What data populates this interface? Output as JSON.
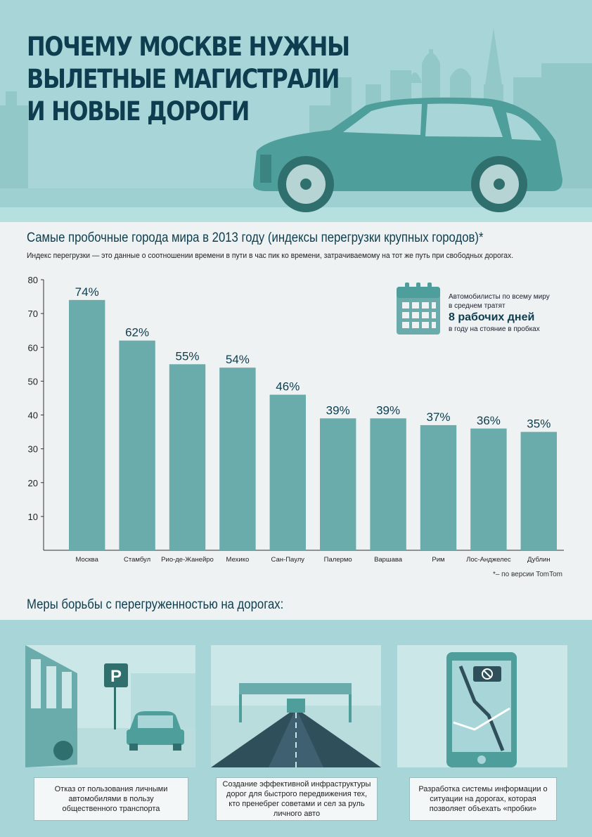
{
  "header": {
    "title_lines": [
      "ПОЧЕМУ МОСКВЕ НУЖНЫ",
      "ВЫЛЕТНЫЕ МАГИСТРАЛИ",
      "И НОВЫЕ ДОРОГИ"
    ]
  },
  "chart_section": {
    "title": "Самые пробочные города мира в 2013 году (индексы перегрузки крупных городов)*",
    "description": "Индекс перегрузки — это данные о соотношении времени в пути в час пик ко времени, затрачиваемому на тот же путь при свободных дорогах.",
    "source_note": "*– по версии TomTom"
  },
  "callout": {
    "line1": "Автомобилисты по всему миру",
    "line2": "в среднем тратят",
    "highlight": "8 рабочих дней",
    "line3": "в году на стояние в пробках",
    "icon": "calendar-icon"
  },
  "chart_data": {
    "type": "bar",
    "categories": [
      "Москва",
      "Стамбул",
      "Рио-де-Жанейро",
      "Мехико",
      "Сан-Паулу",
      "Палермо",
      "Варшава",
      "Рим",
      "Лос-Анджелес",
      "Дублин"
    ],
    "values": [
      74,
      62,
      55,
      54,
      46,
      39,
      39,
      37,
      36,
      35
    ],
    "value_labels": [
      "74%",
      "62%",
      "55%",
      "54%",
      "46%",
      "39%",
      "39%",
      "37%",
      "36%",
      "35%"
    ],
    "yticks": [
      10,
      20,
      30,
      40,
      50,
      60,
      70,
      80
    ],
    "ylim": [
      0,
      80
    ],
    "grid": false,
    "bar_color": "#6aabab",
    "label_color": "#0d3d4e"
  },
  "measures": {
    "title": "Меры борьбы с перегруженностью на дорогах:",
    "items": [
      {
        "caption": "Отказ от пользования личными автомобилями в пользу общественного транспорта",
        "icon": "parking-icon"
      },
      {
        "caption": "Создание эффективной инфраструктуры дорог для быстрого передвижения тех, кто пренебрег советами и сел за руль личного авто",
        "icon": "road-icon"
      },
      {
        "caption": "Разработка системы информации о ситуации на дорогах, которая позволяет объехать «пробки»",
        "icon": "navigator-icon"
      }
    ]
  },
  "colors": {
    "header_bg": "#a8d6d8",
    "title": "#0d3d4e",
    "car": "#4e9e9c"
  }
}
